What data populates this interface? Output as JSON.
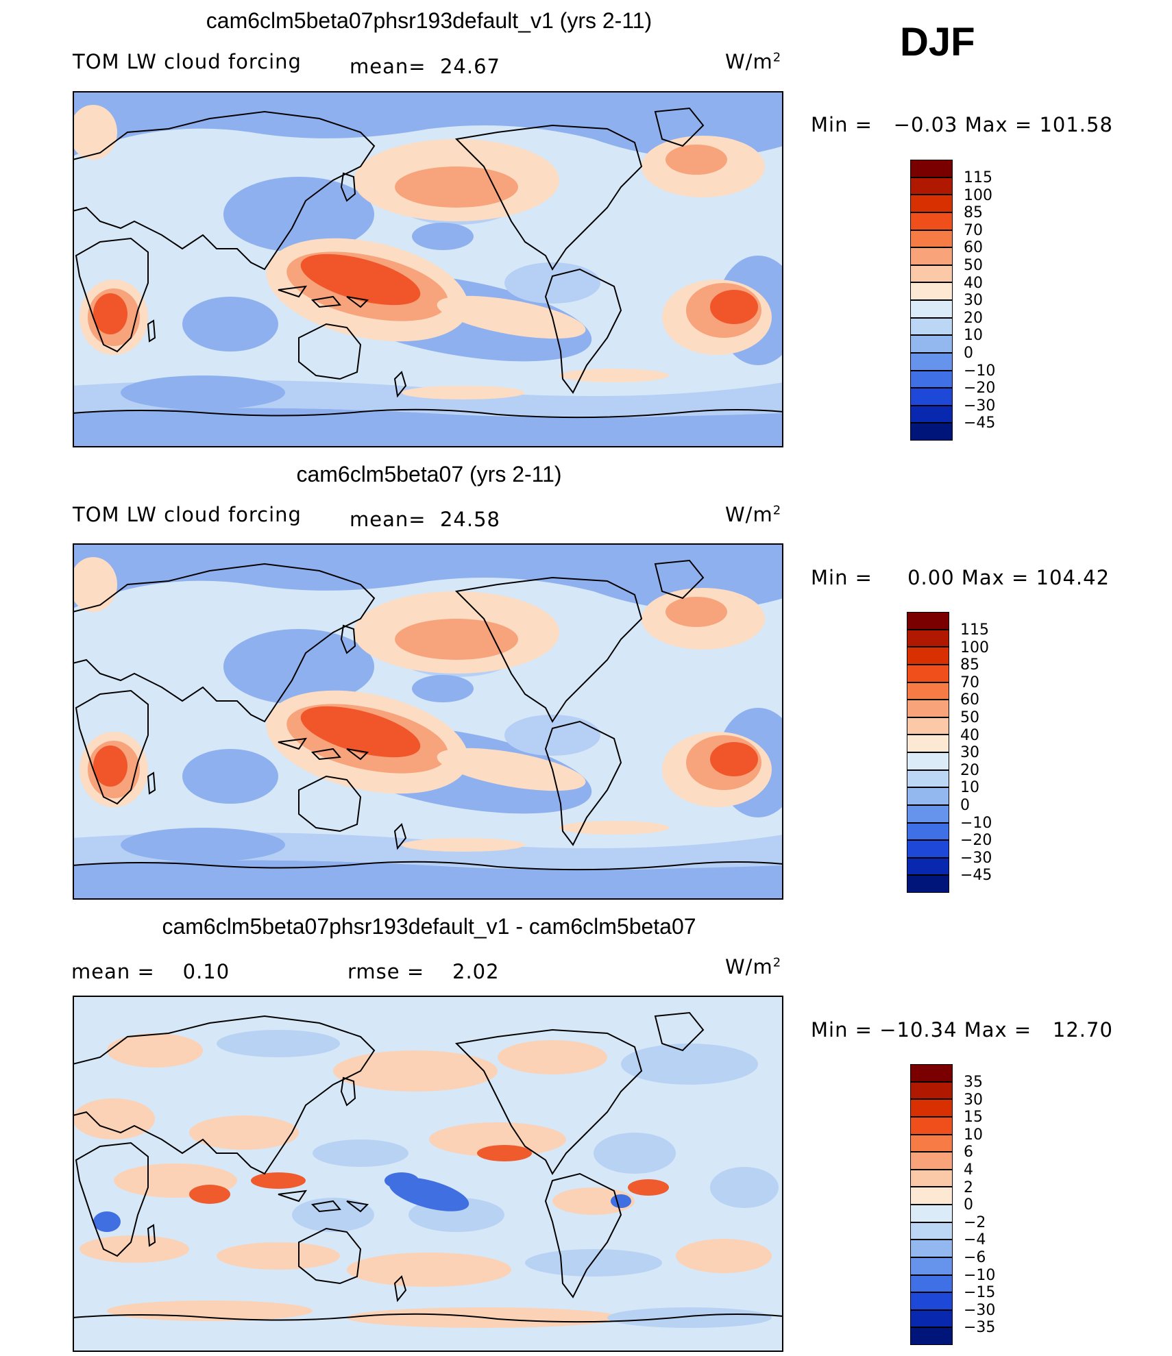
{
  "season": "DJF",
  "units_base": "W/m",
  "units_exp": "2",
  "panels": [
    {
      "title": "cam6clm5beta07phsr193default_v1 (yrs 2-11)",
      "left_label": "TOM LW cloud forcing",
      "mean_label": "mean=",
      "mean_value": "24.67",
      "min_label": "Min  =",
      "min_value": "−0.03",
      "max_label": "Max  =",
      "max_value": "101.58",
      "colorbar_labels": [
        "115",
        "100",
        "85",
        "70",
        "60",
        "50",
        "40",
        "30",
        "20",
        "10",
        "0",
        "−10",
        "−20",
        "−30",
        "−45"
      ]
    },
    {
      "title": "cam6clm5beta07 (yrs 2-11)",
      "left_label": "TOM LW cloud forcing",
      "mean_label": "mean=",
      "mean_value": "24.58",
      "min_label": "Min  =",
      "min_value": "0.00",
      "max_label": "Max  =",
      "max_value": "104.42",
      "colorbar_labels": [
        "115",
        "100",
        "85",
        "70",
        "60",
        "50",
        "40",
        "30",
        "20",
        "10",
        "0",
        "−10",
        "−20",
        "−30",
        "−45"
      ]
    },
    {
      "title": "cam6clm5beta07phsr193default_v1 - cam6clm5beta07",
      "mean_label": "mean  =",
      "mean_value": "0.10",
      "rmse_label": "rmse  =",
      "rmse_value": "2.02",
      "min_label": "Min  =",
      "min_value": "−10.34",
      "max_label": "Max  =",
      "max_value": "12.70",
      "colorbar_labels": [
        "35",
        "30",
        "15",
        "10",
        "6",
        "4",
        "2",
        "0",
        "−2",
        "−4",
        "−6",
        "−10",
        "−15",
        "−30",
        "−35"
      ]
    }
  ],
  "colors": {
    "colorbar": [
      "#7a0000",
      "#b01800",
      "#d83000",
      "#f04e1a",
      "#f77b45",
      "#f9a37a",
      "#fbc9a8",
      "#fde8d4",
      "#dcebf8",
      "#bcd6f5",
      "#93b8f0",
      "#6694ec",
      "#3f70e6",
      "#1e48d8",
      "#0828b0",
      "#00157a"
    ],
    "ocean_base": "#d6e7f7",
    "cool": "#8fb0ef",
    "cool_light": "#b6cff4",
    "warm_light": "#fcdcc2",
    "warm": "#f7a37c",
    "hot": "#f0562a",
    "diff_warm": "#fbd2b6",
    "diff_cool": "#b8d2f3",
    "diff_blue": "#3f6fe0",
    "diff_red": "#ef5b2c"
  }
}
